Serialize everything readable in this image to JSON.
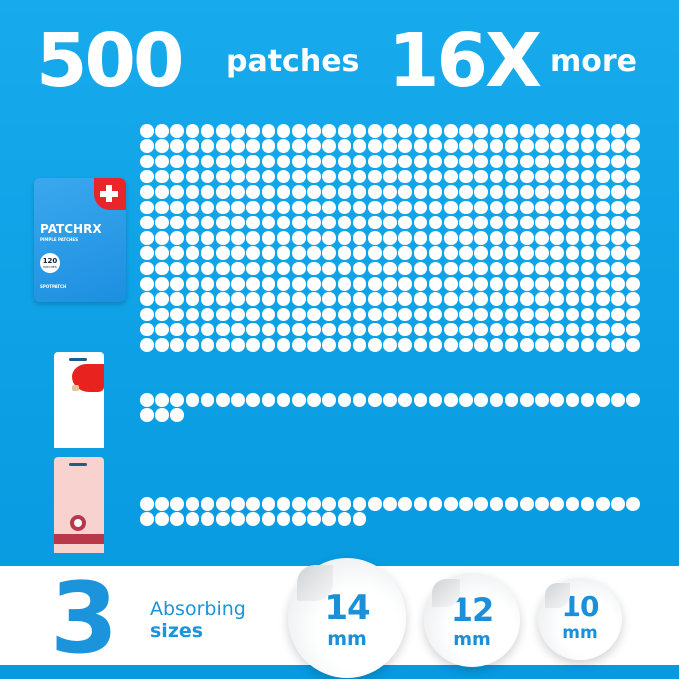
{
  "header": {
    "count": "500",
    "count_label": "patches",
    "multiplier": "16X",
    "multiplier_label": "more"
  },
  "products": [
    {
      "brand": "PATCHRX",
      "subtitle": "PIMPLE PATCHES",
      "count": "120",
      "count_label": "PATCHES",
      "maker": "SPOTPATCH",
      "color": "#2a9be6"
    },
    {
      "brand": "",
      "color": "#ffffff",
      "accent": "#e8231f"
    },
    {
      "brand": "",
      "color": "#f8d2cf",
      "accent": "#b8384a"
    }
  ],
  "dot_groups": [
    {
      "count": 495,
      "columns": 33
    },
    {
      "count": 36,
      "columns": 33
    },
    {
      "count": 48,
      "columns": 33
    }
  ],
  "sizes": {
    "number": "3",
    "label_line1": "Absorbing",
    "label_line2": "sizes",
    "items": [
      {
        "value": "14",
        "unit": "mm"
      },
      {
        "value": "12",
        "unit": "mm"
      },
      {
        "value": "10",
        "unit": "mm"
      }
    ]
  },
  "colors": {
    "background": "#0fa3e6",
    "accent_text": "#1b94dc",
    "dot": "#ffffff"
  }
}
